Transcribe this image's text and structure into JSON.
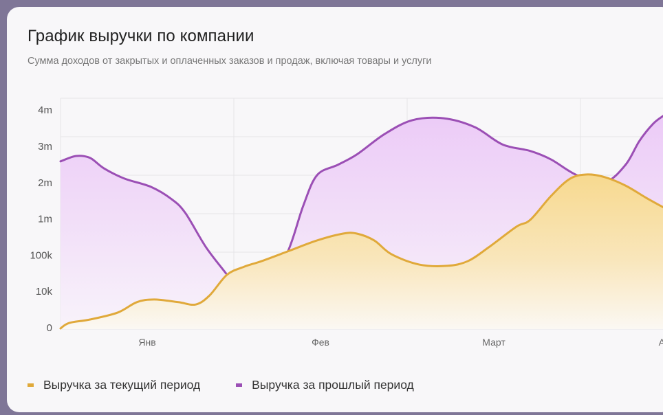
{
  "header": {
    "title": "График выручки по компании",
    "subtitle": "Сумма доходов от закрытых и оплаченных заказов и продаж, включая товары и услуги"
  },
  "colors": {
    "current": "#e0a93a",
    "previous": "#9b4fb5"
  },
  "legend": [
    {
      "label": "Выручка за текущий период",
      "color": "#e0a93a"
    },
    {
      "label": "Выручка за прошлый период",
      "color": "#9b4fb5"
    }
  ],
  "chart_data": {
    "type": "area",
    "title": "График выручки по компании",
    "x_tick_labels": [
      "Янв",
      "Фев",
      "Март",
      "Апр"
    ],
    "y_tick_labels": [
      "0",
      "10k",
      "100k",
      "1m",
      "2m",
      "3m",
      "4m"
    ],
    "y_tick_values": [
      0,
      10000,
      100000,
      1000000,
      2000000,
      3000000,
      4000000
    ],
    "grid": true,
    "legend_position": "bottom-left",
    "series": [
      {
        "name": "Выручка за текущий период",
        "color": "#e0a93a",
        "points": [
          [
            0,
            180
          ],
          [
            0.05,
            1600
          ],
          [
            0.17,
            2500
          ],
          [
            0.33,
            4300
          ],
          [
            0.44,
            7000
          ],
          [
            0.54,
            7700
          ],
          [
            0.68,
            7000
          ],
          [
            0.78,
            6400
          ],
          [
            0.86,
            8750
          ],
          [
            0.96,
            47000
          ],
          [
            1.06,
            66000
          ],
          [
            1.16,
            79000
          ],
          [
            1.32,
            132000
          ],
          [
            1.48,
            374000
          ],
          [
            1.63,
            534000
          ],
          [
            1.71,
            534000
          ],
          [
            1.81,
            374000
          ],
          [
            1.91,
            95000
          ],
          [
            2.07,
            71000
          ],
          [
            2.23,
            68000
          ],
          [
            2.35,
            79000
          ],
          [
            2.47,
            212000
          ],
          [
            2.63,
            695000
          ],
          [
            2.71,
            855000
          ],
          [
            2.83,
            1460000
          ],
          [
            2.94,
            1910000
          ],
          [
            3.04,
            2020000
          ],
          [
            3.14,
            1950000
          ],
          [
            3.26,
            1730000
          ],
          [
            3.38,
            1410000
          ],
          [
            3.48,
            1160000
          ]
        ]
      },
      {
        "name": "Выручка за прошлый период",
        "color": "#9b4fb5",
        "points": [
          [
            0,
            2360000
          ],
          [
            0.09,
            2500000
          ],
          [
            0.17,
            2450000
          ],
          [
            0.25,
            2180000
          ],
          [
            0.37,
            1910000
          ],
          [
            0.52,
            1700000
          ],
          [
            0.64,
            1380000
          ],
          [
            0.72,
            1020000
          ],
          [
            0.84,
            212000
          ],
          [
            0.97,
            42000
          ],
          [
            1.04,
            8750
          ],
          [
            1.18,
            15000
          ],
          [
            1.31,
            100000
          ],
          [
            1.4,
            1200000
          ],
          [
            1.48,
            2000000
          ],
          [
            1.6,
            2270000
          ],
          [
            1.71,
            2540000
          ],
          [
            1.87,
            3070000
          ],
          [
            2.03,
            3430000
          ],
          [
            2.21,
            3480000
          ],
          [
            2.39,
            3250000
          ],
          [
            2.55,
            2800000
          ],
          [
            2.71,
            2630000
          ],
          [
            2.83,
            2410000
          ],
          [
            2.98,
            2000000
          ],
          [
            3.14,
            1820000
          ],
          [
            3.26,
            2270000
          ],
          [
            3.34,
            2890000
          ],
          [
            3.42,
            3340000
          ],
          [
            3.48,
            3550000
          ]
        ]
      }
    ]
  }
}
